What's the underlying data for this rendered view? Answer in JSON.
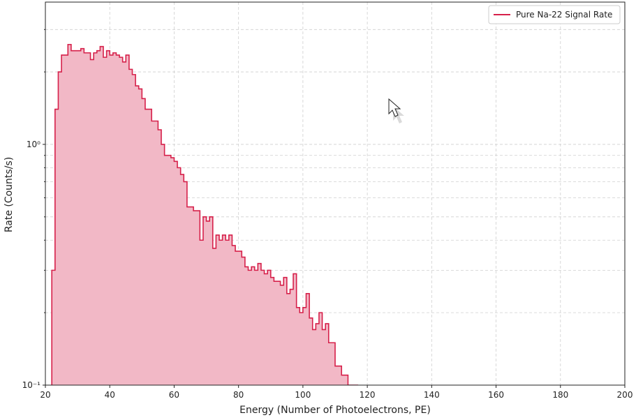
{
  "chart_data": {
    "type": "area",
    "title": "",
    "xlabel": "Energy (Number of Photoelectrons, PE)",
    "ylabel": "Rate (Counts/s)",
    "xlim": [
      20,
      200
    ],
    "ylim": [
      0.1,
      3.9
    ],
    "y_scale": "log",
    "grid": true,
    "legend_position": "top-right",
    "x_ticks": [
      20,
      40,
      60,
      80,
      100,
      120,
      140,
      160,
      180,
      200
    ],
    "y_ticks": [
      {
        "value": 0.1,
        "label": "10⁻¹"
      },
      {
        "value": 1,
        "label": "10⁰"
      }
    ],
    "bin_width": 1,
    "series": [
      {
        "name": "Pure Na-22 Signal Rate",
        "color": "#d6204a",
        "fill": "#f2b8c6",
        "x": [
          22,
          23,
          24,
          25,
          26,
          27,
          28,
          29,
          30,
          31,
          32,
          33,
          34,
          35,
          36,
          37,
          38,
          39,
          40,
          41,
          42,
          43,
          44,
          45,
          46,
          47,
          48,
          49,
          50,
          51,
          52,
          53,
          54,
          55,
          56,
          57,
          58,
          59,
          60,
          61,
          62,
          63,
          64,
          65,
          66,
          67,
          68,
          69,
          70,
          71,
          72,
          73,
          74,
          75,
          76,
          77,
          78,
          79,
          80,
          81,
          82,
          83,
          84,
          85,
          86,
          87,
          88,
          89,
          90,
          91,
          92,
          93,
          94,
          95,
          96,
          97,
          98,
          99,
          100,
          101,
          102,
          103,
          104,
          105,
          106,
          107,
          108,
          109,
          110,
          111,
          112,
          113,
          114,
          115,
          116,
          117
        ],
        "y": [
          0.3,
          1.4,
          2.0,
          2.35,
          2.35,
          2.6,
          2.45,
          2.45,
          2.45,
          2.5,
          2.4,
          2.4,
          2.25,
          2.4,
          2.45,
          2.55,
          2.3,
          2.45,
          2.35,
          2.4,
          2.35,
          2.3,
          2.2,
          2.35,
          2.05,
          1.95,
          1.75,
          1.7,
          1.55,
          1.4,
          1.4,
          1.25,
          1.25,
          1.15,
          1.0,
          0.9,
          0.9,
          0.88,
          0.85,
          0.8,
          0.75,
          0.7,
          0.55,
          0.55,
          0.53,
          0.53,
          0.4,
          0.5,
          0.48,
          0.5,
          0.37,
          0.42,
          0.4,
          0.42,
          0.4,
          0.42,
          0.38,
          0.36,
          0.36,
          0.34,
          0.31,
          0.3,
          0.31,
          0.3,
          0.32,
          0.3,
          0.29,
          0.3,
          0.28,
          0.27,
          0.27,
          0.26,
          0.28,
          0.24,
          0.25,
          0.29,
          0.21,
          0.2,
          0.21,
          0.24,
          0.19,
          0.17,
          0.18,
          0.2,
          0.17,
          0.18,
          0.15,
          0.15,
          0.12,
          0.12,
          0.11,
          0.11,
          0.1,
          0.1,
          0.1,
          0.095
        ]
      }
    ]
  }
}
